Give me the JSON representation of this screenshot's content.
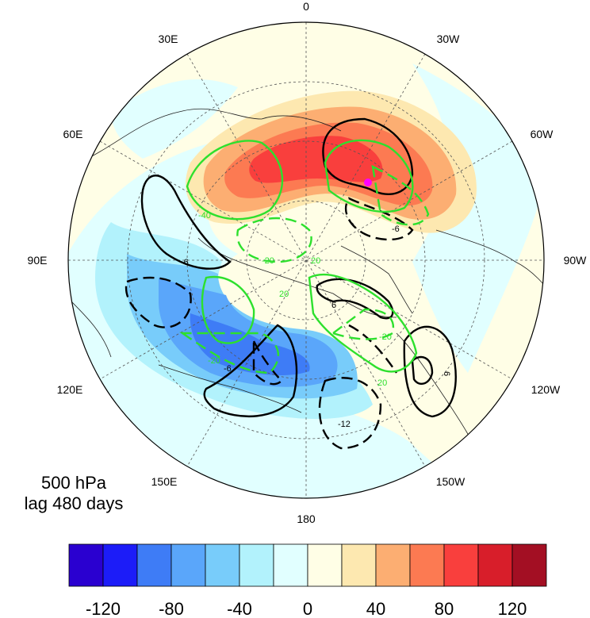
{
  "map": {
    "projection": "north-polar-stereographic",
    "longitude_labels": [
      "0",
      "30W",
      "60W",
      "90W",
      "120W",
      "150W",
      "180",
      "150E",
      "120E",
      "90E",
      "60E",
      "30E"
    ],
    "ring_colors": [
      "#fffee6",
      "#e1ffff"
    ],
    "marker": {
      "color": "#ff00ff"
    }
  },
  "annotation": {
    "level": "500 hPa",
    "lag": "lag 480 days"
  },
  "colorbar": {
    "colors": [
      "#2a00d0",
      "#1c1cf8",
      "#3e7cf6",
      "#5aa6fa",
      "#78ccfa",
      "#b2f2fc",
      "#e1ffff",
      "#fffee6",
      "#fde8b0",
      "#fcae72",
      "#fc7a52",
      "#f93f3d",
      "#d81e2a",
      "#a30f23"
    ],
    "tick_labels": [
      "-120",
      "-80",
      "-40",
      "0",
      "40",
      "80",
      "120"
    ]
  },
  "contour_labels": {
    "black": [
      "-6",
      "-6",
      "-6",
      "6",
      "-12",
      "6"
    ],
    "green": [
      "-40",
      "-20",
      "20",
      "-20",
      "20",
      "-20",
      "20"
    ]
  }
}
